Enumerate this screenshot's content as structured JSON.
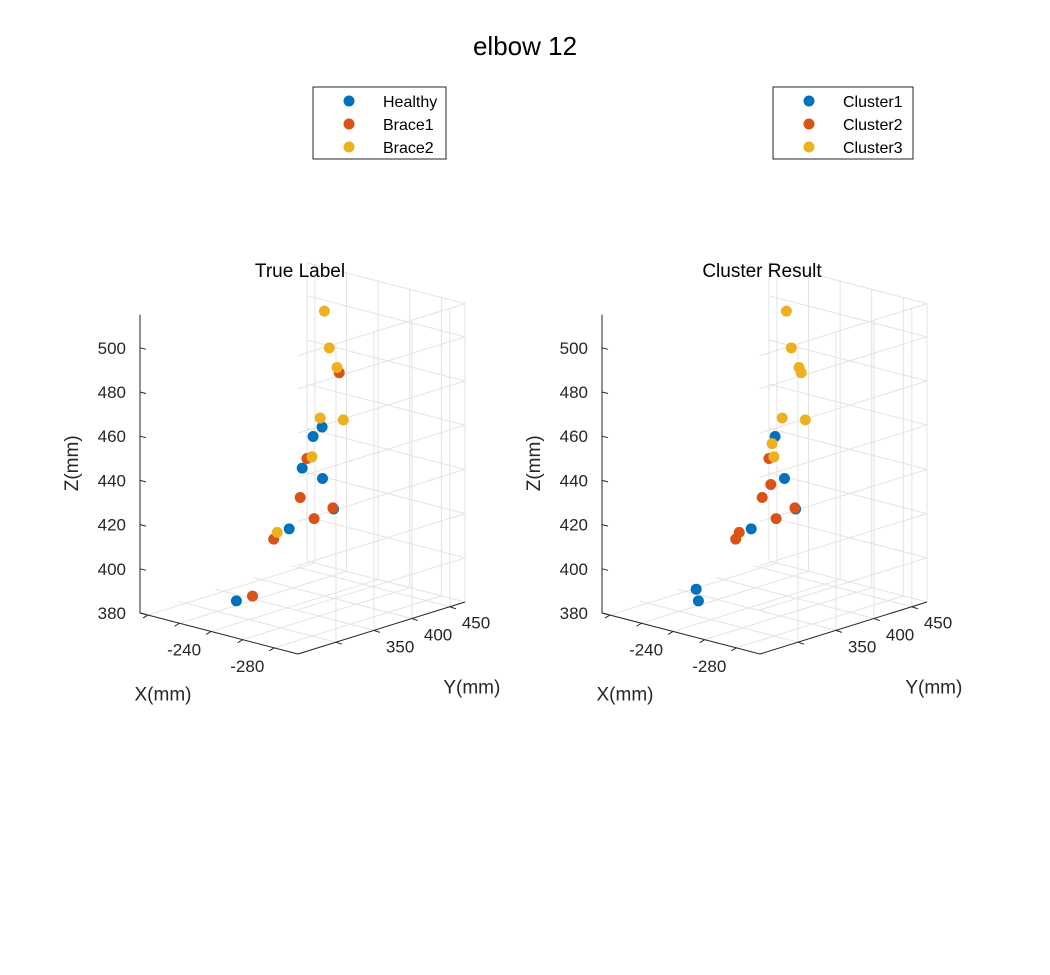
{
  "figure": {
    "title": "elbow 12"
  },
  "colors": {
    "healthy": "#0072BD",
    "brace1": "#D95319",
    "brace2": "#EDB120",
    "grid": "#e3e3e3",
    "axis": "#262626"
  },
  "chart_data": [
    {
      "type": "scatter",
      "title": "True Label",
      "xlabel": "X(mm)",
      "ylabel": "Y(mm)",
      "zlabel": "Z(mm)",
      "xticks": [
        "-280",
        "-240"
      ],
      "yticks": [
        "350",
        "400",
        "450"
      ],
      "zticks": [
        "380",
        "400",
        "420",
        "440",
        "460",
        "480",
        "500"
      ],
      "zlim": [
        380,
        515
      ],
      "grid": true,
      "legend_location": "top-left",
      "legend": [
        "Healthy",
        "Brace1",
        "Brace2"
      ],
      "series": [
        {
          "name": "Healthy",
          "color": "#0072BD",
          "points": [
            {
              "x": -255,
              "y": 365,
              "z": 463
            },
            {
              "x": -252,
              "y": 345,
              "z": 446
            },
            {
              "x": -233,
              "y": 399,
              "z": 451
            },
            {
              "x": -224,
              "y": 430,
              "z": 427
            },
            {
              "x": -220,
              "y": 453,
              "z": 410
            },
            {
              "x": -239,
              "y": 355,
              "z": 415
            },
            {
              "x": -232,
              "y": 300,
              "z": 387
            }
          ]
        },
        {
          "name": "Brace1",
          "color": "#D95319",
          "points": [
            {
              "x": -262,
              "y": 373,
              "z": 488
            },
            {
              "x": -243,
              "y": 370,
              "z": 446
            },
            {
              "x": -270,
              "y": 348,
              "z": 431
            },
            {
              "x": -257,
              "y": 332,
              "z": 435
            },
            {
              "x": -273,
              "y": 317,
              "z": 430
            },
            {
              "x": -245,
              "y": 322,
              "z": 415
            },
            {
              "x": -247,
              "y": 290,
              "z": 393
            }
          ]
        },
        {
          "name": "Brace2",
          "color": "#EDB120",
          "points": [
            {
              "x": -285,
              "y": 312,
              "z": 510
            },
            {
              "x": -275,
              "y": 343,
              "z": 496
            },
            {
              "x": -286,
              "y": 298,
              "z": 480
            },
            {
              "x": -279,
              "y": 343,
              "z": 473
            },
            {
              "x": -287,
              "y": 285,
              "z": 464
            },
            {
              "x": -278,
              "y": 258,
              "z": 431
            },
            {
              "x": -218,
              "y": 445,
              "z": 500
            }
          ]
        }
      ]
    },
    {
      "type": "scatter",
      "title": "Cluster Result",
      "xlabel": "X(mm)",
      "ylabel": "Y(mm)",
      "zlabel": "Z(mm)",
      "xticks": [
        "-280",
        "-240"
      ],
      "yticks": [
        "350",
        "400",
        "450"
      ],
      "zticks": [
        "380",
        "400",
        "420",
        "440",
        "460",
        "480",
        "500"
      ],
      "zlim": [
        380,
        515
      ],
      "grid": true,
      "legend_location": "top-right",
      "legend": [
        "Cluster1",
        "Cluster2",
        "Cluster3"
      ],
      "series": [
        {
          "name": "Cluster1",
          "color": "#0072BD",
          "points": [
            {
              "x": -233,
              "y": 399,
              "z": 451
            },
            {
              "x": -224,
              "y": 430,
              "z": 427
            },
            {
              "x": -220,
              "y": 453,
              "z": 410
            },
            {
              "x": -239,
              "y": 355,
              "z": 415
            },
            {
              "x": -232,
              "y": 300,
              "z": 387
            },
            {
              "x": -233,
              "y": 295,
              "z": 393
            }
          ]
        },
        {
          "name": "Cluster2",
          "color": "#D95319",
          "points": [
            {
              "x": -243,
              "y": 370,
              "z": 446
            },
            {
              "x": -248,
              "y": 362,
              "z": 436
            },
            {
              "x": -270,
              "y": 348,
              "z": 431
            },
            {
              "x": -257,
              "y": 332,
              "z": 435
            },
            {
              "x": -273,
              "y": 317,
              "z": 430
            },
            {
              "x": -245,
              "y": 322,
              "z": 415
            },
            {
              "x": -278,
              "y": 258,
              "z": 431
            }
          ]
        },
        {
          "name": "Cluster3",
          "color": "#EDB120",
          "points": [
            {
              "x": -285,
              "y": 312,
              "z": 510
            },
            {
              "x": -275,
              "y": 343,
              "z": 496
            },
            {
              "x": -262,
              "y": 373,
              "z": 488
            },
            {
              "x": -286,
              "y": 298,
              "z": 480
            },
            {
              "x": -279,
              "y": 343,
              "z": 473
            },
            {
              "x": -287,
              "y": 285,
              "z": 464
            },
            {
              "x": -257,
              "y": 345,
              "z": 458
            },
            {
              "x": -218,
              "y": 445,
              "z": 500
            }
          ]
        }
      ]
    }
  ]
}
